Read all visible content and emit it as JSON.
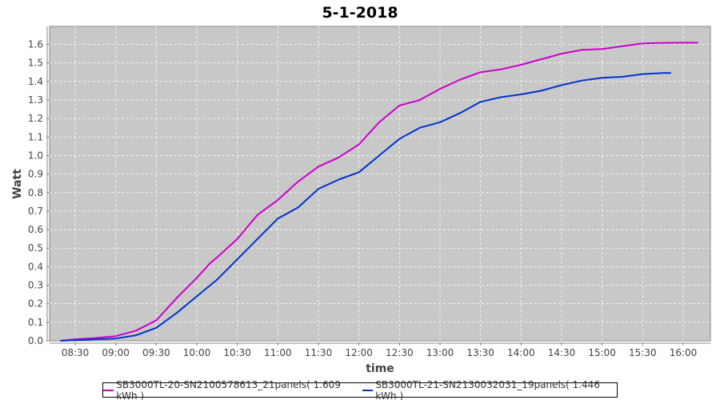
{
  "chart_data": {
    "type": "line",
    "title": "5-1-2018",
    "xlabel": "time",
    "ylabel": "Watt",
    "xlim_minutes": [
      491,
      1220
    ],
    "ylim": [
      0,
      1.66
    ],
    "x_ticks": [
      {
        "label": "08:30",
        "min": 510
      },
      {
        "label": "09:00",
        "min": 540
      },
      {
        "label": "09:30",
        "min": 570
      },
      {
        "label": "10:00",
        "min": 600
      },
      {
        "label": "10:30",
        "min": 630
      },
      {
        "label": "11:00",
        "min": 660
      },
      {
        "label": "11:30",
        "min": 690
      },
      {
        "label": "12:00",
        "min": 720
      },
      {
        "label": "12:30",
        "min": 750
      },
      {
        "label": "13:00",
        "min": 780
      },
      {
        "label": "13:30",
        "min": 810
      },
      {
        "label": "14:00",
        "min": 840
      },
      {
        "label": "14:30",
        "min": 870
      },
      {
        "label": "15:00",
        "min": 900
      },
      {
        "label": "15:30",
        "min": 930
      },
      {
        "label": "16:00",
        "min": 960
      }
    ],
    "y_ticks": [
      "0.0",
      "0.1",
      "0.2",
      "0.3",
      "0.4",
      "0.5",
      "0.6",
      "0.7",
      "0.8",
      "0.9",
      "1.0",
      "1.1",
      "1.2",
      "1.3",
      "1.4",
      "1.5",
      "1.6"
    ],
    "grid": true,
    "legend_position": "bottom",
    "series": [
      {
        "name": "SB3000TL-20-SN2100578613_21panels( 1.609 kWh )",
        "color": "#cc00cc",
        "x": [
          499,
          510,
          525,
          540,
          555,
          570,
          585,
          600,
          610,
          615,
          630,
          645,
          660,
          675,
          690,
          705,
          720,
          735,
          750,
          765,
          780,
          795,
          810,
          825,
          840,
          855,
          870,
          885,
          900,
          915,
          930,
          945,
          960,
          971
        ],
        "y": [
          0,
          0.008,
          0.015,
          0.025,
          0.055,
          0.11,
          0.23,
          0.34,
          0.42,
          0.45,
          0.55,
          0.68,
          0.76,
          0.86,
          0.94,
          0.99,
          1.06,
          1.18,
          1.27,
          1.3,
          1.36,
          1.41,
          1.45,
          1.465,
          1.49,
          1.52,
          1.55,
          1.57,
          1.575,
          1.59,
          1.605,
          1.608,
          1.609,
          1.609
        ]
      },
      {
        "name": "SB3000TL-21-SN2130032031_19panels( 1.446 kWh )",
        "color": "#0033cc",
        "x": [
          499,
          510,
          525,
          540,
          555,
          570,
          585,
          600,
          610,
          615,
          630,
          645,
          660,
          675,
          690,
          705,
          720,
          735,
          750,
          765,
          780,
          795,
          810,
          825,
          840,
          855,
          870,
          885,
          900,
          915,
          930,
          945,
          951
        ],
        "y": [
          0,
          0.003,
          0.008,
          0.012,
          0.03,
          0.07,
          0.15,
          0.24,
          0.3,
          0.33,
          0.44,
          0.55,
          0.66,
          0.72,
          0.82,
          0.87,
          0.91,
          1.0,
          1.09,
          1.15,
          1.18,
          1.23,
          1.29,
          1.315,
          1.33,
          1.35,
          1.38,
          1.405,
          1.42,
          1.425,
          1.44,
          1.446,
          1.446
        ]
      }
    ]
  }
}
